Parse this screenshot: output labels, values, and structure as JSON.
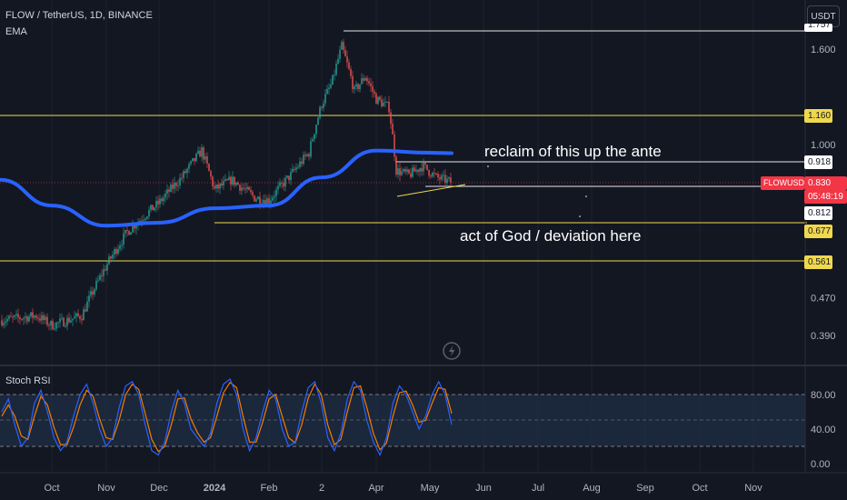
{
  "header": {
    "symbol_line": "FLOW / TetherUS, 1D, BINANCE",
    "indicator": "EMA"
  },
  "currency_button": "USDT",
  "annotations": {
    "upper": "reclaim of this up the ante",
    "lower": "act of God / deviation here"
  },
  "price_tags": {
    "top_partial": "1.757",
    "level_1160": "1.160",
    "level_0918": "0.918",
    "symbol": "FLOWUSDT",
    "last_price": "0.830",
    "countdown": "05:48:19",
    "level_0812": "0.812",
    "level_0677": "0.677",
    "level_0561": "0.561"
  },
  "oscillator_label": "Stoch RSI",
  "colors": {
    "background": "#131722",
    "up": "#26a69a",
    "down": "#ef5350",
    "ema": "#2962ff",
    "level_line": "#f0d84e",
    "white_line": "#e6e6e6",
    "price_tag": "#f23645",
    "stoch_k": "#2962ff",
    "stoch_d": "#f57c00",
    "rsi_band": "#1f2f45"
  },
  "chart_data": [
    {
      "type": "candlestick",
      "title": "FLOW / TetherUS, 1D, BINANCE",
      "scale": "log",
      "y_ticks": [
        1.6,
        1.0,
        0.47,
        0.39
      ],
      "y_tick_labels": [
        "1.600",
        "1.000",
        "0.470",
        "0.390"
      ],
      "x_tick_labels": [
        "Oct",
        "Nov",
        "Dec",
        "2024",
        "Feb",
        "2",
        "Apr",
        "May",
        "Jun",
        "Jul",
        "Aug",
        "Sep",
        "Oct",
        "Nov"
      ],
      "ohlc_approx": [
        {
          "month": "Oct",
          "low": 0.39,
          "high": 0.45
        },
        {
          "month": "Nov",
          "low": 0.4,
          "high": 0.78
        },
        {
          "month": "Dec",
          "low": 0.66,
          "high": 1.05
        },
        {
          "month": "Jan",
          "low": 0.72,
          "high": 1.0
        },
        {
          "month": "Feb",
          "low": 0.72,
          "high": 1.1
        },
        {
          "month": "Mar",
          "low": 0.95,
          "high": 1.72
        },
        {
          "month": "Apr",
          "low": 0.78,
          "high": 1.5
        },
        {
          "month": "May",
          "low": 0.8,
          "high": 1.0
        }
      ],
      "ema_approx": [
        {
          "x": "Sep",
          "y": 0.84
        },
        {
          "x": "Oct",
          "y": 0.74
        },
        {
          "x": "Nov",
          "y": 0.67
        },
        {
          "x": "Dec",
          "y": 0.68
        },
        {
          "x": "2024",
          "y": 0.73
        },
        {
          "x": "Feb",
          "y": 0.74
        },
        {
          "x": "Mar",
          "y": 0.85
        },
        {
          "x": "Apr",
          "y": 0.97
        },
        {
          "x": "May",
          "y": 0.96
        }
      ],
      "horizontal_levels": [
        1.757,
        1.16,
        0.918,
        0.83,
        0.812,
        0.677,
        0.561
      ],
      "last_price": 0.83,
      "countdown": "05:48:19"
    },
    {
      "type": "line",
      "title": "Stoch RSI",
      "y_ticks": [
        80,
        40,
        0
      ],
      "y_tick_labels": [
        "80.00",
        "40.00",
        "0.00"
      ],
      "band": [
        20,
        80
      ],
      "midline": 50,
      "series": [
        {
          "values": [
            60,
            75,
            45,
            20,
            30,
            70,
            85,
            60,
            30,
            15,
            25,
            55,
            80,
            92,
            70,
            40,
            20,
            30,
            65,
            90,
            95,
            80,
            45,
            15,
            10,
            25,
            60,
            85,
            70,
            40,
            30,
            20,
            35,
            70,
            92,
            98,
            80,
            40,
            15,
            30,
            60,
            85,
            75,
            40,
            20,
            25,
            60,
            88,
            95,
            70,
            30,
            15,
            35,
            75,
            95,
            85,
            50,
            25,
            10,
            30,
            70,
            90,
            80,
            60,
            40,
            55,
            80,
            95,
            80,
            45
          ]
        },
        {
          "values": [
            55,
            68,
            55,
            32,
            28,
            55,
            78,
            68,
            42,
            22,
            22,
            42,
            68,
            85,
            78,
            52,
            30,
            28,
            50,
            80,
            92,
            86,
            58,
            28,
            14,
            20,
            45,
            75,
            76,
            52,
            36,
            25,
            30,
            55,
            82,
            94,
            88,
            55,
            25,
            25,
            48,
            75,
            80,
            55,
            30,
            24,
            45,
            76,
            92,
            80,
            45,
            22,
            28,
            60,
            88,
            90,
            65,
            35,
            16,
            24,
            55,
            82,
            84,
            68,
            48,
            50,
            70,
            88,
            86,
            58
          ]
        }
      ]
    }
  ]
}
